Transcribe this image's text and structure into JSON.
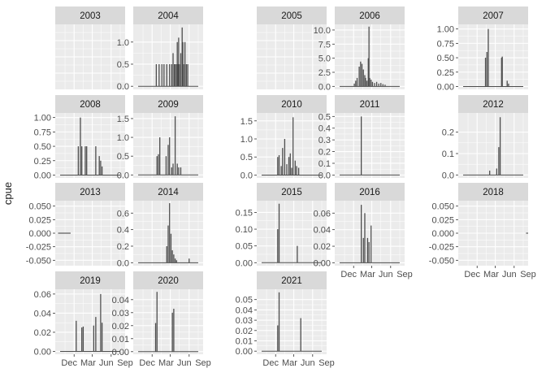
{
  "chart_data": {
    "type": "area",
    "facet_by": "year",
    "ylabel": "cpue",
    "xlabel": "",
    "x_tick_labels": [
      "Dec",
      "Mar",
      "Jun",
      "Sep"
    ],
    "colors": {
      "panel_bg": "#ebebeb",
      "grid": "#ffffff",
      "strip_bg": "#d9d9d9",
      "series": "#4d4d4d",
      "text": "#4d4d4d",
      "strip_text": "#1a1a1a"
    },
    "panels": [
      {
        "year": "2003",
        "ylim": [
          0,
          1
        ],
        "y_ticks": [],
        "y_tick_labels": [],
        "values": []
      },
      {
        "year": "2004",
        "ylim": [
          -0.07,
          1.4
        ],
        "y_ticks": [
          0,
          0.5,
          1.0
        ],
        "y_tick_labels": [
          "0.0",
          "0.5",
          "1.0"
        ],
        "values": [
          [
            0.33,
            0.5
          ],
          [
            0.37,
            0.5
          ],
          [
            0.41,
            0.5
          ],
          [
            0.44,
            0.5
          ],
          [
            0.48,
            0.5
          ],
          [
            0.52,
            0.5
          ],
          [
            0.55,
            0.5
          ],
          [
            0.57,
            0.75
          ],
          [
            0.59,
            0.5
          ],
          [
            0.6,
            0.5
          ],
          [
            0.62,
            0.5
          ],
          [
            0.63,
            1.0
          ],
          [
            0.64,
            0.5
          ],
          [
            0.65,
            1.1
          ],
          [
            0.66,
            0.5
          ],
          [
            0.68,
            0.75
          ],
          [
            0.7,
            1.33
          ],
          [
            0.71,
            1.0
          ],
          [
            0.72,
            0.5
          ],
          [
            0.74,
            1.0
          ],
          [
            0.76,
            0.5
          ],
          [
            0.78,
            0.5
          ]
        ]
      },
      {
        "year": "2005",
        "ylim": [
          0,
          1
        ],
        "y_ticks": [],
        "y_tick_labels": [],
        "values": []
      },
      {
        "year": "2006",
        "ylim": [
          -0.53,
          11
        ],
        "y_ticks": [
          0,
          2.5,
          5.0,
          7.5,
          10.0
        ],
        "y_tick_labels": [
          "0.0",
          "2.5",
          "5.0",
          "7.5",
          "10.0"
        ],
        "values": [
          [
            0.28,
            0.5
          ],
          [
            0.3,
            1.0
          ],
          [
            0.32,
            1.5
          ],
          [
            0.35,
            3.5
          ],
          [
            0.37,
            4.4
          ],
          [
            0.39,
            4.0
          ],
          [
            0.41,
            3.0
          ],
          [
            0.43,
            2.0
          ],
          [
            0.44,
            1.5
          ],
          [
            0.46,
            1.0
          ],
          [
            0.48,
            5.0
          ],
          [
            0.49,
            10.6
          ],
          [
            0.5,
            1.5
          ],
          [
            0.52,
            1.2
          ],
          [
            0.54,
            0.8
          ],
          [
            0.57,
            0.6
          ],
          [
            0.6,
            0.8
          ],
          [
            0.63,
            0.5
          ],
          [
            0.66,
            0.6
          ],
          [
            0.69,
            0.4
          ],
          [
            0.72,
            0.3
          ]
        ]
      },
      {
        "year": "2007",
        "ylim": [
          -0.05,
          1.08
        ],
        "y_ticks": [
          0,
          0.25,
          0.5,
          0.75,
          1.0
        ],
        "y_tick_labels": [
          "0.00",
          "0.25",
          "0.50",
          "0.75",
          "1.00"
        ],
        "values": [
          [
            0.39,
            0.5
          ],
          [
            0.41,
            0.6
          ],
          [
            0.43,
            1.0
          ],
          [
            0.62,
            0.5
          ],
          [
            0.63,
            0.52
          ],
          [
            0.7,
            0.1
          ],
          [
            0.72,
            0.05
          ]
        ]
      },
      {
        "year": "2008",
        "ylim": [
          -0.05,
          1.08
        ],
        "y_ticks": [
          0,
          0.25,
          0.5,
          0.75,
          1.0
        ],
        "y_tick_labels": [
          "0.00",
          "0.25",
          "0.50",
          "0.75",
          "1.00"
        ],
        "values": [
          [
            0.33,
            0.5
          ],
          [
            0.36,
            1.0
          ],
          [
            0.38,
            0.5
          ],
          [
            0.43,
            0.5
          ],
          [
            0.45,
            0.5
          ],
          [
            0.58,
            0.5
          ],
          [
            0.63,
            0.33
          ],
          [
            0.65,
            0.25
          ],
          [
            0.67,
            0.15
          ]
        ]
      },
      {
        "year": "2009",
        "ylim": [
          -0.08,
          1.65
        ],
        "y_ticks": [
          0,
          0.5,
          1.0,
          1.5
        ],
        "y_tick_labels": [
          "0.0",
          "0.5",
          "1.0",
          "1.5"
        ],
        "values": [
          [
            0.34,
            0.5
          ],
          [
            0.36,
            0.55
          ],
          [
            0.38,
            1.0
          ],
          [
            0.47,
            0.5
          ],
          [
            0.5,
            0.8
          ],
          [
            0.52,
            1.0
          ],
          [
            0.55,
            0.2
          ],
          [
            0.57,
            0.3
          ],
          [
            0.6,
            1.56
          ],
          [
            0.63,
            0.3
          ],
          [
            0.65,
            0.2
          ],
          [
            0.68,
            0.2
          ]
        ]
      },
      {
        "year": "2010",
        "ylim": [
          -0.08,
          1.72
        ],
        "y_ticks": [
          0,
          0.5,
          1.0,
          1.5
        ],
        "y_tick_labels": [
          "0.0",
          "0.5",
          "1.0",
          "1.5"
        ],
        "values": [
          [
            0.3,
            0.5
          ],
          [
            0.32,
            0.55
          ],
          [
            0.35,
            0.25
          ],
          [
            0.37,
            0.75
          ],
          [
            0.4,
            1.0
          ],
          [
            0.43,
            0.3
          ],
          [
            0.46,
            0.5
          ],
          [
            0.48,
            0.6
          ],
          [
            0.5,
            0.2
          ],
          [
            0.52,
            1.6
          ],
          [
            0.55,
            0.4
          ],
          [
            0.57,
            0.25
          ],
          [
            0.6,
            0.2
          ]
        ]
      },
      {
        "year": "2011",
        "ylim": [
          -0.025,
          0.53
        ],
        "y_ticks": [
          0,
          0.1,
          0.2,
          0.3,
          0.4,
          0.5
        ],
        "y_tick_labels": [
          "0.0",
          "0.1",
          "0.2",
          "0.3",
          "0.4",
          "0.5"
        ],
        "values": [
          [
            0.38,
            0.5
          ]
        ]
      },
      {
        "year": "2012",
        "ylim": [
          -0.014,
          0.29
        ],
        "y_ticks": [
          0,
          0.1,
          0.2
        ],
        "y_tick_labels": [
          "0.0",
          "0.1",
          "0.2"
        ],
        "values": [
          [
            0.45,
            0.02
          ],
          [
            0.55,
            0.03
          ],
          [
            0.58,
            0.13
          ],
          [
            0.6,
            0.27
          ]
        ]
      },
      {
        "year": "2013",
        "ylim": [
          -0.06,
          0.06
        ],
        "y_ticks": [
          -0.05,
          -0.025,
          0,
          0.025,
          0.05
        ],
        "y_tick_labels": [
          "-0.050",
          "-0.025",
          "0.000",
          "0.025",
          "0.050"
        ],
        "values": [],
        "flat_segment": [
          0.04,
          0.22
        ]
      },
      {
        "year": "2014",
        "ylim": [
          -0.036,
          0.75
        ],
        "y_ticks": [
          0,
          0.2,
          0.4,
          0.6
        ],
        "y_tick_labels": [
          "0.0",
          "0.2",
          "0.4",
          "0.6"
        ],
        "values": [
          [
            0.48,
            0.2
          ],
          [
            0.5,
            0.45
          ],
          [
            0.52,
            0.72
          ],
          [
            0.54,
            0.35
          ],
          [
            0.56,
            0.15
          ],
          [
            0.58,
            0.1
          ],
          [
            0.6,
            0.05
          ],
          [
            0.62,
            0.03
          ],
          [
            0.8,
            0.05
          ]
        ]
      },
      {
        "year": "2015",
        "ylim": [
          -0.009,
          0.185
        ],
        "y_ticks": [
          0,
          0.05,
          0.1,
          0.15
        ],
        "y_tick_labels": [
          "0.00",
          "0.05",
          "0.10",
          "0.15"
        ],
        "values": [
          [
            0.3,
            0.1
          ],
          [
            0.32,
            0.176
          ],
          [
            0.58,
            0.05
          ]
        ]
      },
      {
        "year": "2016",
        "ylim": [
          -0.0035,
          0.075
        ],
        "y_ticks": [
          0,
          0.02,
          0.04,
          0.06
        ],
        "y_tick_labels": [
          "0.00",
          "0.02",
          "0.04",
          "0.06"
        ],
        "values": [
          [
            0.38,
            0.07
          ],
          [
            0.41,
            0.03
          ],
          [
            0.43,
            0.06
          ],
          [
            0.47,
            0.03
          ],
          [
            0.49,
            0.025
          ],
          [
            0.52,
            0.045
          ]
        ]
      },
      {
        "year": "2018",
        "ylim": [
          -0.06,
          0.06
        ],
        "y_ticks": [
          -0.05,
          -0.025,
          0,
          0.025,
          0.05
        ],
        "y_tick_labels": [
          "-0.050",
          "-0.025",
          "0.000",
          "0.025",
          "0.050"
        ],
        "values": [],
        "flat_segment": [
          0.97,
          1.0
        ]
      },
      {
        "year": "2019",
        "ylim": [
          -0.003,
          0.065
        ],
        "y_ticks": [
          0,
          0.02,
          0.04,
          0.06
        ],
        "y_tick_labels": [
          "0.00",
          "0.02",
          "0.04",
          "0.06"
        ],
        "values": [
          [
            0.3,
            0.032
          ],
          [
            0.38,
            0.025
          ],
          [
            0.4,
            0.026
          ],
          [
            0.55,
            0.027
          ],
          [
            0.58,
            0.036
          ],
          [
            0.65,
            0.06
          ],
          [
            0.67,
            0.03
          ]
        ]
      },
      {
        "year": "2020",
        "ylim": [
          -0.002,
          0.048
        ],
        "y_ticks": [
          0,
          0.01,
          0.02,
          0.03,
          0.04
        ],
        "y_tick_labels": [
          "0.00",
          "0.01",
          "0.02",
          "0.03",
          "0.04"
        ],
        "values": [
          [
            0.32,
            0.022
          ],
          [
            0.34,
            0.046
          ],
          [
            0.56,
            0.03
          ],
          [
            0.58,
            0.033
          ]
        ]
      },
      {
        "year": "2021",
        "ylim": [
          -0.003,
          0.06
        ],
        "y_ticks": [
          0,
          0.01,
          0.02,
          0.03,
          0.04,
          0.05
        ],
        "y_tick_labels": [
          "0.00",
          "0.01",
          "0.02",
          "0.03",
          "0.04",
          "0.05"
        ],
        "values": [
          [
            0.3,
            0.025
          ],
          [
            0.32,
            0.057
          ],
          [
            0.63,
            0.032
          ]
        ]
      }
    ]
  }
}
